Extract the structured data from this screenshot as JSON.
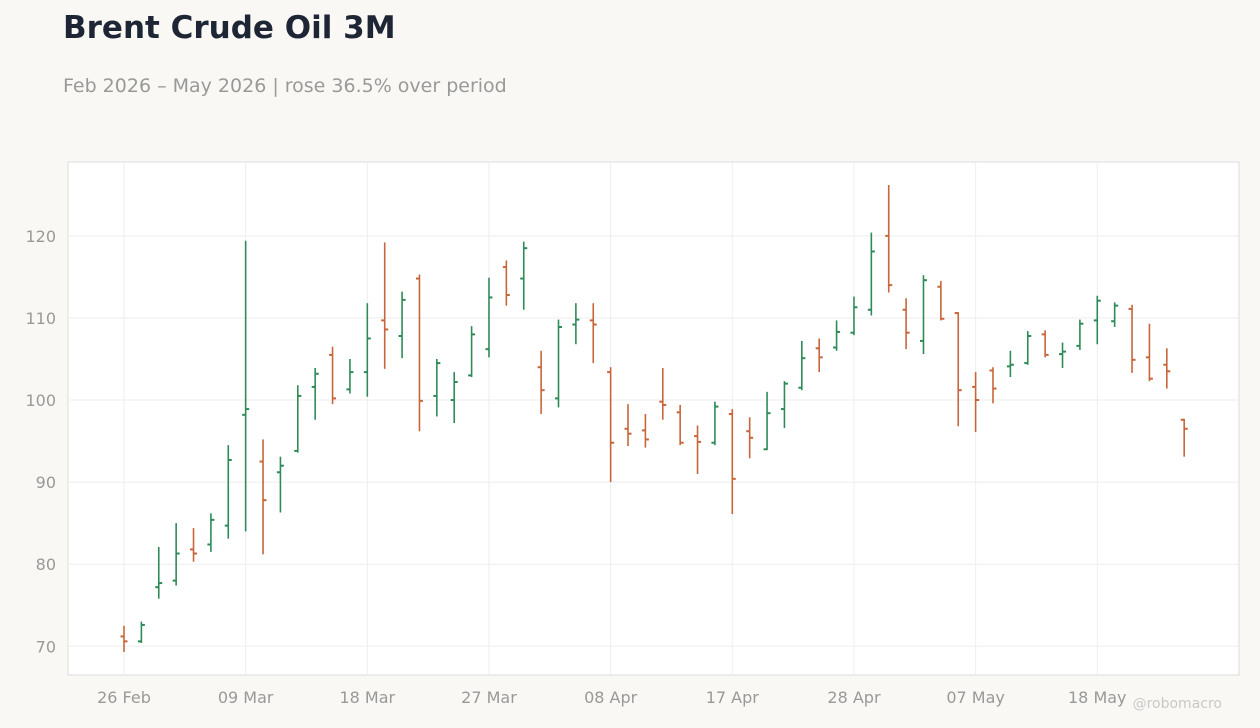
{
  "title": "Brent Crude Oil 3M",
  "subtitle": "Feb 2026 – May 2026 | rose 36.5% over period",
  "watermark": "@robomacro",
  "colors": {
    "up": "#2e8b57",
    "down": "#c8653a",
    "grid": "#eeeeee",
    "frame": "#dcdcdc",
    "plot_bg": "#ffffff",
    "page_bg": "#f9f8f5"
  },
  "chart_data": {
    "type": "ohlc",
    "title": "Brent Crude Oil 3M",
    "subtitle": "Feb 2026 – May 2026 | rose 36.5% over period",
    "xlabel": "",
    "ylabel": "",
    "ylim": [
      66.5,
      129
    ],
    "y_ticks": [
      70,
      80,
      90,
      100,
      110,
      120
    ],
    "x_ticks": [
      "26 Feb",
      "09 Mar",
      "18 Mar",
      "27 Mar",
      "08 Apr",
      "17 Apr",
      "28 Apr",
      "07 May",
      "18 May"
    ],
    "grid": true,
    "bars": [
      {
        "date": "26 Feb",
        "open": 71.2,
        "high": 72.5,
        "low": 69.3,
        "close": 70.6
      },
      {
        "date": "27 Feb",
        "open": 70.6,
        "high": 73.0,
        "low": 70.4,
        "close": 72.6
      },
      {
        "date": "02 Mar",
        "open": 77.2,
        "high": 82.1,
        "low": 75.8,
        "close": 77.7
      },
      {
        "date": "03 Mar",
        "open": 78.0,
        "high": 85.0,
        "low": 77.4,
        "close": 81.3
      },
      {
        "date": "04 Mar",
        "open": 81.8,
        "high": 84.4,
        "low": 80.3,
        "close": 81.3
      },
      {
        "date": "05 Mar",
        "open": 82.4,
        "high": 86.2,
        "low": 81.5,
        "close": 85.4
      },
      {
        "date": "06 Mar",
        "open": 84.7,
        "high": 94.5,
        "low": 83.1,
        "close": 92.7
      },
      {
        "date": "09 Mar",
        "open": 98.2,
        "high": 119.4,
        "low": 84.0,
        "close": 98.9
      },
      {
        "date": "10 Mar",
        "open": 92.5,
        "high": 95.2,
        "low": 81.2,
        "close": 87.8
      },
      {
        "date": "11 Mar",
        "open": 91.2,
        "high": 93.1,
        "low": 86.3,
        "close": 92.0
      },
      {
        "date": "12 Mar",
        "open": 93.8,
        "high": 101.8,
        "low": 93.6,
        "close": 100.5
      },
      {
        "date": "13 Mar",
        "open": 101.6,
        "high": 103.9,
        "low": 97.6,
        "close": 103.2
      },
      {
        "date": "16 Mar",
        "open": 105.5,
        "high": 106.5,
        "low": 99.5,
        "close": 100.2
      },
      {
        "date": "17 Mar",
        "open": 101.3,
        "high": 105.0,
        "low": 100.8,
        "close": 103.4
      },
      {
        "date": "18 Mar",
        "open": 103.4,
        "high": 111.8,
        "low": 100.4,
        "close": 107.5
      },
      {
        "date": "19 Mar",
        "open": 109.7,
        "high": 119.2,
        "low": 103.8,
        "close": 108.6
      },
      {
        "date": "20 Mar",
        "open": 107.8,
        "high": 113.2,
        "low": 105.1,
        "close": 112.2
      },
      {
        "date": "23 Mar",
        "open": 114.8,
        "high": 115.3,
        "low": 96.2,
        "close": 99.9
      },
      {
        "date": "24 Mar",
        "open": 100.5,
        "high": 105.0,
        "low": 98.0,
        "close": 104.5
      },
      {
        "date": "25 Mar",
        "open": 100.0,
        "high": 103.4,
        "low": 97.2,
        "close": 102.2
      },
      {
        "date": "26 Mar",
        "open": 103.0,
        "high": 109.0,
        "low": 102.8,
        "close": 108.0
      },
      {
        "date": "27 Mar",
        "open": 106.2,
        "high": 114.9,
        "low": 105.2,
        "close": 112.5
      },
      {
        "date": "30 Mar",
        "open": 116.2,
        "high": 117.0,
        "low": 111.5,
        "close": 112.8
      },
      {
        "date": "31 Mar",
        "open": 114.8,
        "high": 119.3,
        "low": 111.0,
        "close": 118.5
      },
      {
        "date": "01 Apr",
        "open": 104.0,
        "high": 106.0,
        "low": 98.3,
        "close": 101.2
      },
      {
        "date": "02 Apr",
        "open": 100.2,
        "high": 109.8,
        "low": 99.1,
        "close": 108.9
      },
      {
        "date": "03 Apr",
        "open": 109.2,
        "high": 111.8,
        "low": 106.8,
        "close": 109.8
      },
      {
        "date": "07 Apr",
        "open": 109.7,
        "high": 111.8,
        "low": 104.5,
        "close": 109.2
      },
      {
        "date": "08 Apr",
        "open": 103.4,
        "high": 104.0,
        "low": 90.0,
        "close": 94.8
      },
      {
        "date": "09 Apr",
        "open": 96.5,
        "high": 99.5,
        "low": 94.4,
        "close": 95.9
      },
      {
        "date": "10 Apr",
        "open": 96.3,
        "high": 98.3,
        "low": 94.2,
        "close": 95.2
      },
      {
        "date": "13 Apr",
        "open": 99.8,
        "high": 103.9,
        "low": 97.6,
        "close": 99.4
      },
      {
        "date": "14 Apr",
        "open": 98.5,
        "high": 99.4,
        "low": 94.5,
        "close": 94.8
      },
      {
        "date": "15 Apr",
        "open": 95.6,
        "high": 96.9,
        "low": 91.0,
        "close": 94.9
      },
      {
        "date": "16 Apr",
        "open": 94.8,
        "high": 99.8,
        "low": 94.5,
        "close": 99.2
      },
      {
        "date": "17 Apr",
        "open": 98.3,
        "high": 98.9,
        "low": 86.1,
        "close": 90.4
      },
      {
        "date": "20 Apr",
        "open": 96.2,
        "high": 97.9,
        "low": 92.9,
        "close": 95.4
      },
      {
        "date": "21 Apr",
        "open": 94.0,
        "high": 101.0,
        "low": 93.9,
        "close": 98.4
      },
      {
        "date": "22 Apr",
        "open": 98.9,
        "high": 102.3,
        "low": 96.6,
        "close": 102.0
      },
      {
        "date": "23 Apr",
        "open": 101.5,
        "high": 107.2,
        "low": 101.2,
        "close": 105.1
      },
      {
        "date": "24 Apr",
        "open": 106.3,
        "high": 107.5,
        "low": 103.4,
        "close": 105.2
      },
      {
        "date": "27 Apr",
        "open": 106.4,
        "high": 109.7,
        "low": 106.0,
        "close": 108.3
      },
      {
        "date": "28 Apr",
        "open": 108.2,
        "high": 112.6,
        "low": 107.9,
        "close": 111.3
      },
      {
        "date": "29 Apr",
        "open": 111.0,
        "high": 120.4,
        "low": 110.3,
        "close": 118.1
      },
      {
        "date": "30 Apr",
        "open": 120.0,
        "high": 126.2,
        "low": 113.1,
        "close": 114.0
      },
      {
        "date": "01 May",
        "open": 111.0,
        "high": 112.4,
        "low": 106.2,
        "close": 108.2
      },
      {
        "date": "04 May",
        "open": 107.2,
        "high": 115.2,
        "low": 105.6,
        "close": 114.6
      },
      {
        "date": "05 May",
        "open": 113.8,
        "high": 114.5,
        "low": 109.7,
        "close": 109.9
      },
      {
        "date": "06 May",
        "open": 110.6,
        "high": 110.7,
        "low": 96.8,
        "close": 101.2
      },
      {
        "date": "07 May",
        "open": 101.6,
        "high": 103.4,
        "low": 96.1,
        "close": 100.0
      },
      {
        "date": "08 May",
        "open": 103.6,
        "high": 104.0,
        "low": 99.6,
        "close": 101.4
      },
      {
        "date": "11 May",
        "open": 104.1,
        "high": 106.0,
        "low": 102.8,
        "close": 104.3
      },
      {
        "date": "12 May",
        "open": 104.5,
        "high": 108.4,
        "low": 104.3,
        "close": 107.8
      },
      {
        "date": "13 May",
        "open": 108.0,
        "high": 108.5,
        "low": 105.2,
        "close": 105.5
      },
      {
        "date": "14 May",
        "open": 105.6,
        "high": 107.0,
        "low": 103.9,
        "close": 105.9
      },
      {
        "date": "15 May",
        "open": 106.6,
        "high": 109.8,
        "low": 106.1,
        "close": 109.3
      },
      {
        "date": "18 May",
        "open": 109.7,
        "high": 112.7,
        "low": 106.8,
        "close": 112.1
      },
      {
        "date": "19 May",
        "open": 109.6,
        "high": 111.9,
        "low": 108.9,
        "close": 111.5
      },
      {
        "date": "20 May",
        "open": 111.1,
        "high": 111.6,
        "low": 103.3,
        "close": 104.9
      },
      {
        "date": "21 May",
        "open": 105.2,
        "high": 109.3,
        "low": 102.3,
        "close": 102.6
      },
      {
        "date": "22 May",
        "open": 104.3,
        "high": 106.3,
        "low": 101.4,
        "close": 103.5
      },
      {
        "date": "25 May",
        "open": 97.6,
        "high": 97.7,
        "low": 93.1,
        "close": 96.5
      }
    ]
  }
}
